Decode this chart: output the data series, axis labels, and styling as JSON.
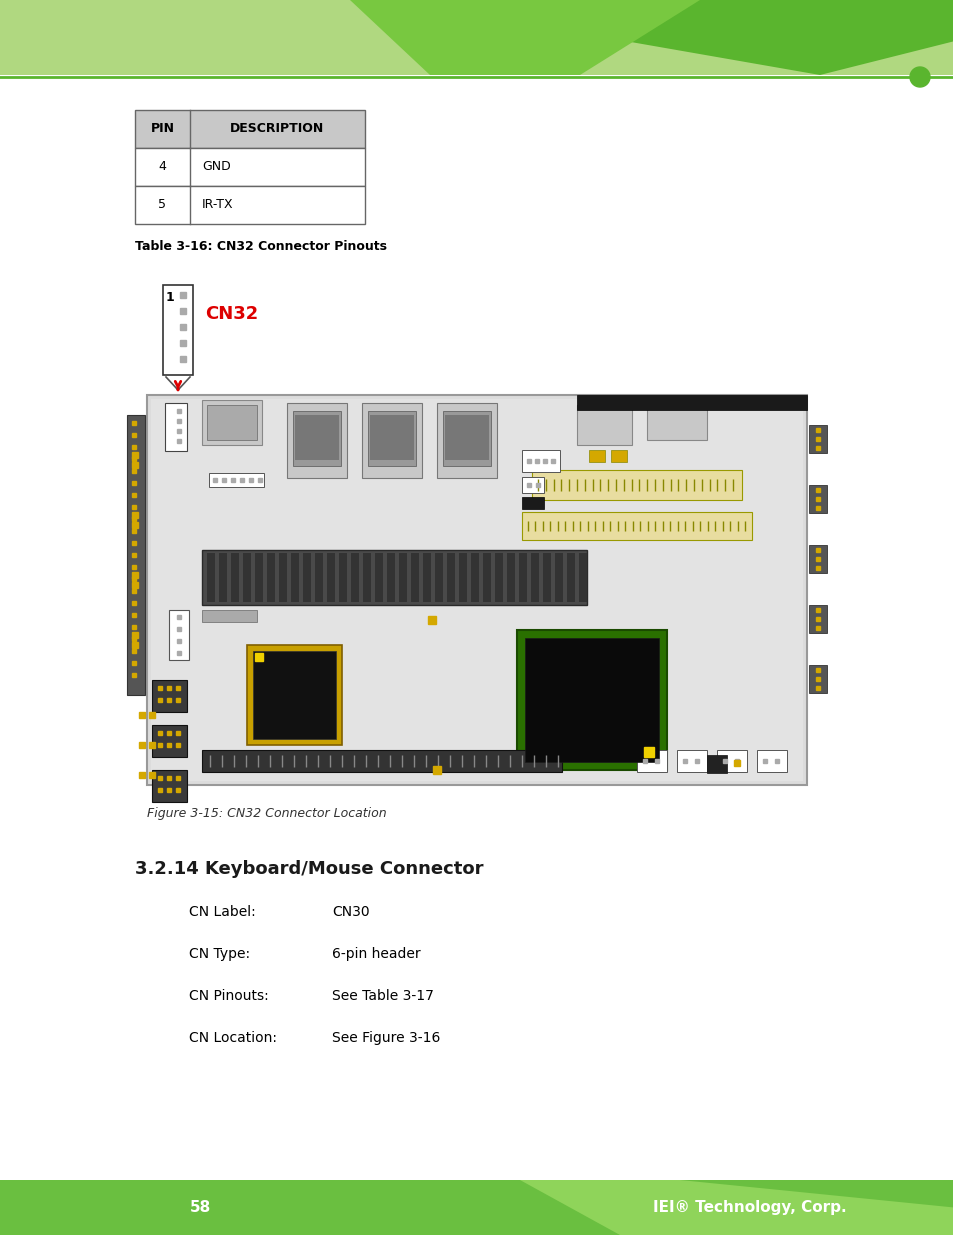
{
  "bg_color": "#ffffff",
  "green_header_light": "#9dd06a",
  "green_header_dark": "#5ab52e",
  "green_line_color": "#5ab52e",
  "footer_bar_color": "#6abf40",
  "footer_text_color": "#ffffff",
  "page_number": "58",
  "company": "IEI® Technology, Corp.",
  "table_header_bg": "#c8c8c8",
  "table_header_pin": "PIN",
  "table_header_desc": "DESCRIPTION",
  "table_rows": [
    {
      "pin": "4",
      "desc": "GND"
    },
    {
      "pin": "5",
      "desc": "IR-TX"
    }
  ],
  "table_caption": "Table 3-16: CN32 Connector Pinouts",
  "figure_caption": "Figure 3-15: CN32 Connector Location",
  "cn32_label": "CN32",
  "cn32_color": "#dd0000",
  "section_title": "3.2.14 Keyboard/Mouse Connector",
  "cn_label_text": "CN Label:",
  "cn_label_val": "CN30",
  "cn_type_text": "CN Type:",
  "cn_type_val": "6-pin header",
  "cn_pinouts_text": "CN Pinouts:",
  "cn_pinouts_val": "See Table 3-17",
  "cn_location_text": "CN Location:",
  "cn_location_val": "See Figure 3-16"
}
